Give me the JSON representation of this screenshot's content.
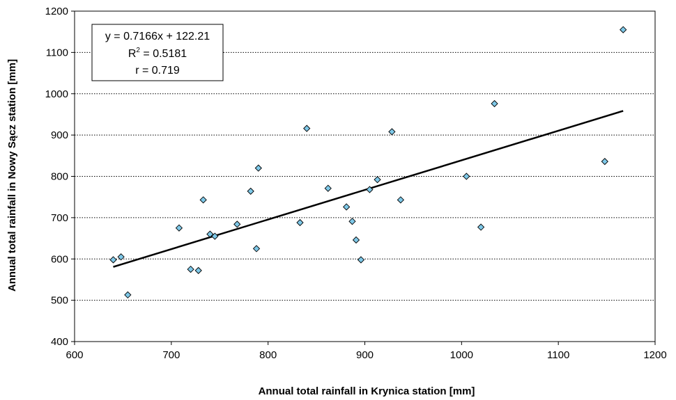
{
  "chart_data": {
    "type": "scatter",
    "xlabel": "Annual total rainfall in Krynica station [mm]",
    "ylabel": "Annual total rainfall in Nowy Sącz station [mm]",
    "xlim": [
      600,
      1200
    ],
    "ylim": [
      400,
      1200
    ],
    "x_ticks": [
      "600",
      "700",
      "800",
      "900",
      "1000",
      "1100",
      "1200"
    ],
    "y_ticks": [
      "400",
      "500",
      "600",
      "700",
      "800",
      "900",
      "1000",
      "1100",
      "1200"
    ],
    "grid": "horizontal dotted",
    "points": [
      {
        "x": 640,
        "y": 598
      },
      {
        "x": 648,
        "y": 605
      },
      {
        "x": 655,
        "y": 513
      },
      {
        "x": 708,
        "y": 675
      },
      {
        "x": 720,
        "y": 575
      },
      {
        "x": 728,
        "y": 572
      },
      {
        "x": 733,
        "y": 743
      },
      {
        "x": 740,
        "y": 660
      },
      {
        "x": 745,
        "y": 655
      },
      {
        "x": 768,
        "y": 684
      },
      {
        "x": 782,
        "y": 764
      },
      {
        "x": 788,
        "y": 625
      },
      {
        "x": 790,
        "y": 820
      },
      {
        "x": 833,
        "y": 688
      },
      {
        "x": 840,
        "y": 916
      },
      {
        "x": 862,
        "y": 771
      },
      {
        "x": 881,
        "y": 726
      },
      {
        "x": 887,
        "y": 691
      },
      {
        "x": 891,
        "y": 646
      },
      {
        "x": 896,
        "y": 598
      },
      {
        "x": 905,
        "y": 768
      },
      {
        "x": 913,
        "y": 792
      },
      {
        "x": 928,
        "y": 908
      },
      {
        "x": 937,
        "y": 743
      },
      {
        "x": 1005,
        "y": 800
      },
      {
        "x": 1020,
        "y": 677
      },
      {
        "x": 1034,
        "y": 976
      },
      {
        "x": 1148,
        "y": 836
      },
      {
        "x": 1167,
        "y": 1155
      }
    ],
    "trendline": {
      "slope": 0.7166,
      "intercept": 122.21,
      "x_range": [
        640,
        1167
      ]
    },
    "annotation": {
      "line1": "y = 0.7166x + 122.21",
      "line2_base": "R",
      "line2_sup": "2",
      "line2_rest": " = 0.5181",
      "line3": "r = 0.719"
    },
    "colors": {
      "marker_fill": "#7ec8e8",
      "marker_stroke": "#000000",
      "line": "#000000",
      "grid": "#000000"
    }
  }
}
